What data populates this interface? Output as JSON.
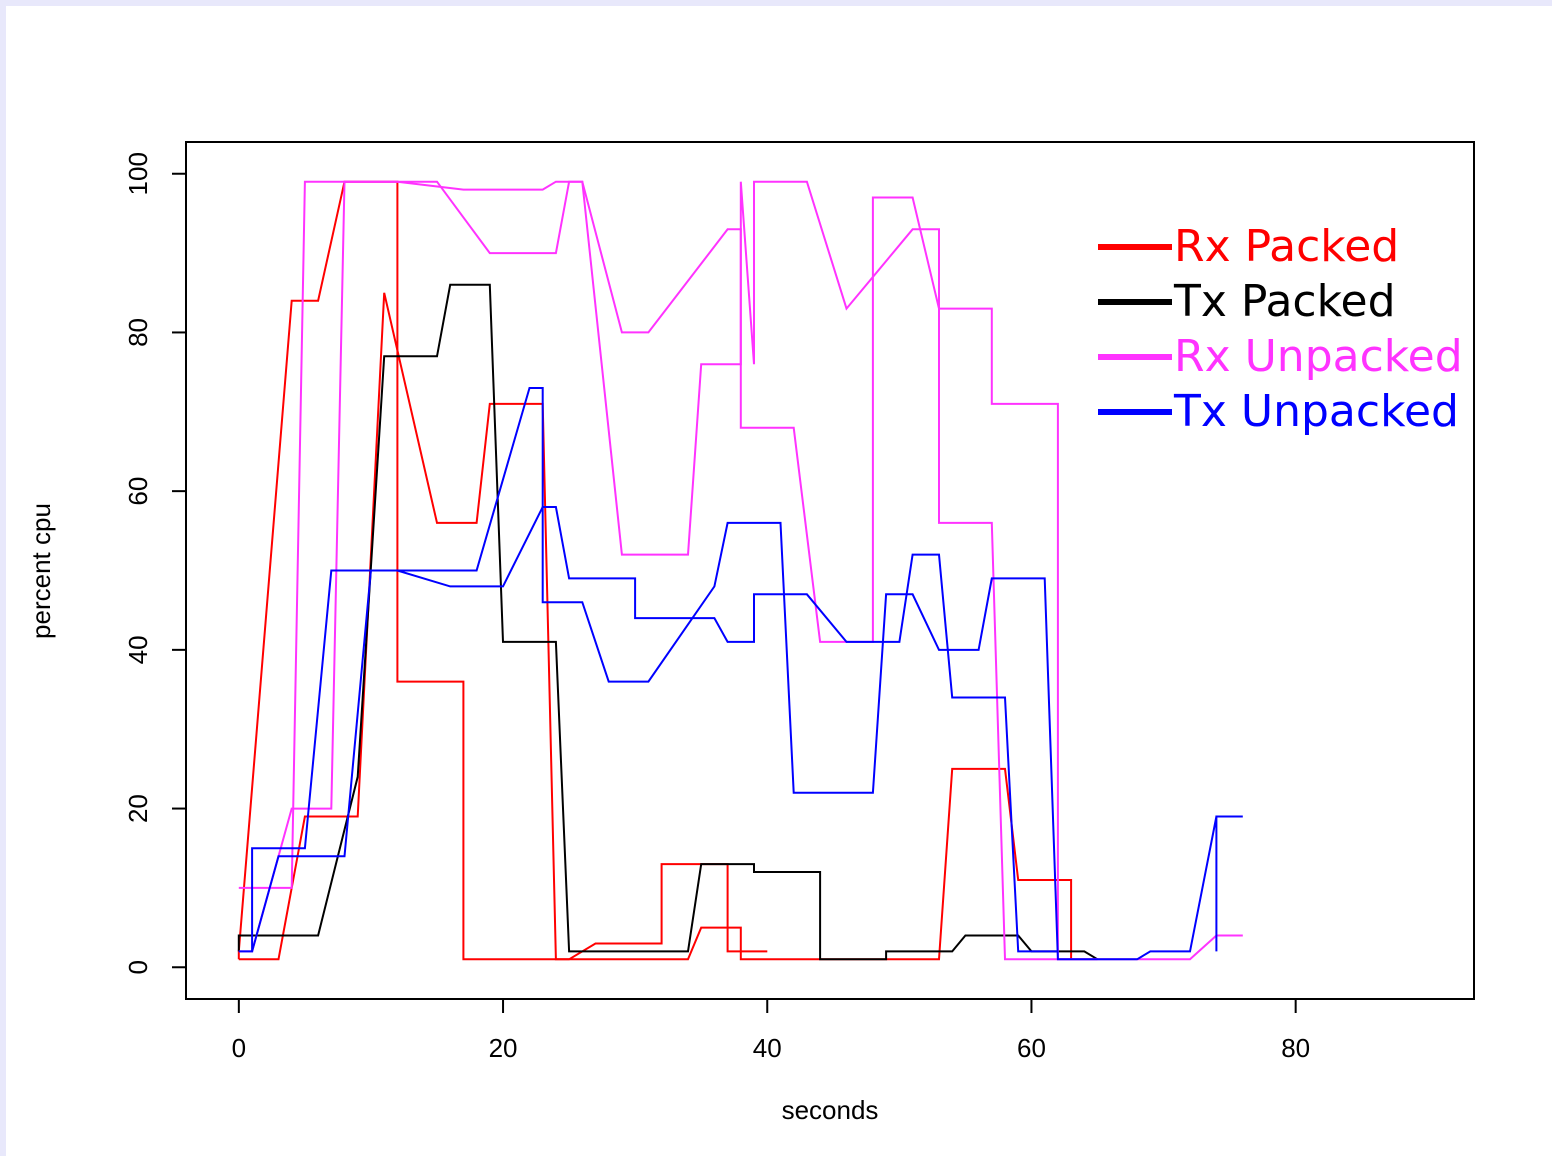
{
  "chart_data": {
    "type": "line",
    "title": "",
    "xlabel": "seconds",
    "ylabel": "percent cpu",
    "xlim": [
      -4,
      93.5
    ],
    "ylim": [
      -4,
      104
    ],
    "xticks": [
      0,
      20,
      40,
      60,
      80
    ],
    "yticks": [
      0,
      20,
      40,
      60,
      80,
      100
    ],
    "grid": false,
    "legend_position": "top-right",
    "series": [
      {
        "name": "Rx Packed",
        "color": "#ff0000",
        "legend_color": "#f0301a",
        "points": [
          [
            0,
            1
          ],
          [
            0,
            2
          ],
          [
            4,
            84
          ],
          [
            6,
            84
          ],
          [
            8,
            99
          ],
          [
            12,
            99
          ],
          [
            12,
            36
          ],
          [
            17,
            36
          ],
          [
            17,
            1
          ],
          [
            25,
            1
          ],
          [
            27,
            3
          ],
          [
            32,
            3
          ],
          [
            32,
            13
          ],
          [
            37,
            13
          ],
          [
            37,
            2
          ],
          [
            40,
            2
          ]
        ]
      },
      {
        "name": "Rx Packed",
        "color": "#ff0000",
        "legend_color": "#f0301a",
        "points": [
          [
            0,
            1
          ],
          [
            3,
            1
          ],
          [
            5,
            19
          ],
          [
            9,
            19
          ],
          [
            11,
            85
          ],
          [
            15,
            56
          ],
          [
            18,
            56
          ],
          [
            19,
            71
          ],
          [
            23,
            71
          ],
          [
            24,
            1
          ],
          [
            34,
            1
          ],
          [
            35,
            5
          ],
          [
            38,
            5
          ],
          [
            38,
            1
          ],
          [
            53,
            1
          ],
          [
            54,
            25
          ],
          [
            58,
            25
          ],
          [
            59,
            11
          ],
          [
            63,
            11
          ],
          [
            63,
            1
          ]
        ]
      },
      {
        "name": "Tx Packed",
        "color": "#000000",
        "legend_color": "#000000",
        "points": [
          [
            0,
            2
          ],
          [
            0,
            4
          ],
          [
            6,
            4
          ],
          [
            9,
            24
          ],
          [
            11,
            77
          ],
          [
            15,
            77
          ],
          [
            16,
            86
          ],
          [
            19,
            86
          ],
          [
            20,
            41
          ],
          [
            24,
            41
          ],
          [
            25,
            2
          ],
          [
            34,
            2
          ],
          [
            35,
            13
          ],
          [
            39,
            13
          ],
          [
            39,
            12
          ],
          [
            44,
            12
          ],
          [
            44,
            1
          ],
          [
            49,
            1
          ],
          [
            49,
            2
          ],
          [
            54,
            2
          ],
          [
            55,
            4
          ],
          [
            59,
            4
          ],
          [
            60,
            2
          ],
          [
            64,
            2
          ],
          [
            65,
            1
          ]
        ]
      },
      {
        "name": "Rx Unpacked",
        "color": "#ff33ff",
        "legend_color": "#ff55ff",
        "points": [
          [
            0,
            2
          ],
          [
            1,
            2
          ],
          [
            4,
            20
          ],
          [
            7,
            20
          ],
          [
            8,
            99
          ],
          [
            12,
            99
          ],
          [
            17,
            98
          ],
          [
            23,
            98
          ],
          [
            24,
            99
          ],
          [
            26,
            99
          ],
          [
            29,
            52
          ],
          [
            34,
            52
          ],
          [
            35,
            76
          ],
          [
            38,
            76
          ],
          [
            38,
            99
          ],
          [
            39,
            76
          ],
          [
            39,
            99
          ],
          [
            43,
            99
          ],
          [
            46,
            83
          ],
          [
            51,
            93
          ],
          [
            53,
            93
          ],
          [
            53,
            56
          ],
          [
            57,
            56
          ],
          [
            58,
            1
          ],
          [
            65,
            1
          ]
        ]
      },
      {
        "name": "Rx Unpacked",
        "color": "#ff33ff",
        "legend_color": "#ff55ff",
        "points": [
          [
            0,
            10
          ],
          [
            4,
            10
          ],
          [
            5,
            99
          ],
          [
            15,
            99
          ],
          [
            19,
            90
          ],
          [
            24,
            90
          ],
          [
            25,
            99
          ],
          [
            26,
            99
          ],
          [
            29,
            80
          ],
          [
            31,
            80
          ],
          [
            37,
            93
          ],
          [
            38,
            93
          ],
          [
            38,
            68
          ],
          [
            42,
            68
          ],
          [
            44,
            41
          ],
          [
            48,
            41
          ],
          [
            48,
            97
          ],
          [
            51,
            97
          ],
          [
            53,
            83
          ],
          [
            57,
            83
          ],
          [
            57,
            71
          ],
          [
            62,
            71
          ],
          [
            62,
            1
          ],
          [
            72,
            1
          ],
          [
            74,
            4
          ],
          [
            76,
            4
          ]
        ]
      },
      {
        "name": "Tx Unpacked",
        "color": "#0000ff",
        "legend_color": "#1a3fe0",
        "points": [
          [
            0,
            2
          ],
          [
            1,
            2
          ],
          [
            1,
            15
          ],
          [
            5,
            15
          ],
          [
            7,
            50
          ],
          [
            16,
            50
          ],
          [
            18,
            50
          ],
          [
            22,
            73
          ],
          [
            22,
            73
          ],
          [
            23,
            73
          ],
          [
            23,
            46
          ],
          [
            26,
            46
          ],
          [
            28,
            36
          ],
          [
            31,
            36
          ],
          [
            36,
            48
          ],
          [
            37,
            56
          ],
          [
            41,
            56
          ],
          [
            42,
            22
          ],
          [
            48,
            22
          ],
          [
            49,
            47
          ],
          [
            51,
            47
          ],
          [
            53,
            40
          ],
          [
            56,
            40
          ],
          [
            57,
            49
          ],
          [
            61,
            49
          ],
          [
            62,
            1
          ],
          [
            68,
            1
          ],
          [
            69,
            2
          ],
          [
            72,
            2
          ],
          [
            74,
            19
          ],
          [
            74,
            2
          ],
          [
            74,
            19
          ],
          [
            76,
            19
          ]
        ]
      },
      {
        "name": "Tx Unpacked",
        "color": "#0000ff",
        "legend_color": "#1a3fe0",
        "points": [
          [
            1,
            2
          ],
          [
            3,
            14
          ],
          [
            8,
            14
          ],
          [
            10,
            50
          ],
          [
            12,
            50
          ],
          [
            16,
            48
          ],
          [
            20,
            48
          ],
          [
            23,
            58
          ],
          [
            24,
            58
          ],
          [
            25,
            49
          ],
          [
            30,
            49
          ],
          [
            30,
            44
          ],
          [
            36,
            44
          ],
          [
            37,
            41
          ],
          [
            39,
            41
          ],
          [
            39,
            47
          ],
          [
            43,
            47
          ],
          [
            46,
            41
          ],
          [
            50,
            41
          ],
          [
            51,
            52
          ],
          [
            53,
            52
          ],
          [
            54,
            34
          ],
          [
            58,
            34
          ],
          [
            59,
            2
          ],
          [
            62,
            2
          ]
        ]
      }
    ],
    "legend": [
      {
        "label": "Rx Packed",
        "color": "#ff0000"
      },
      {
        "label": "Tx Packed",
        "color": "#000000"
      },
      {
        "label": "Rx Unpacked",
        "color": "#ff33ff"
      },
      {
        "label": "Tx Unpacked",
        "color": "#0000ff"
      }
    ]
  }
}
